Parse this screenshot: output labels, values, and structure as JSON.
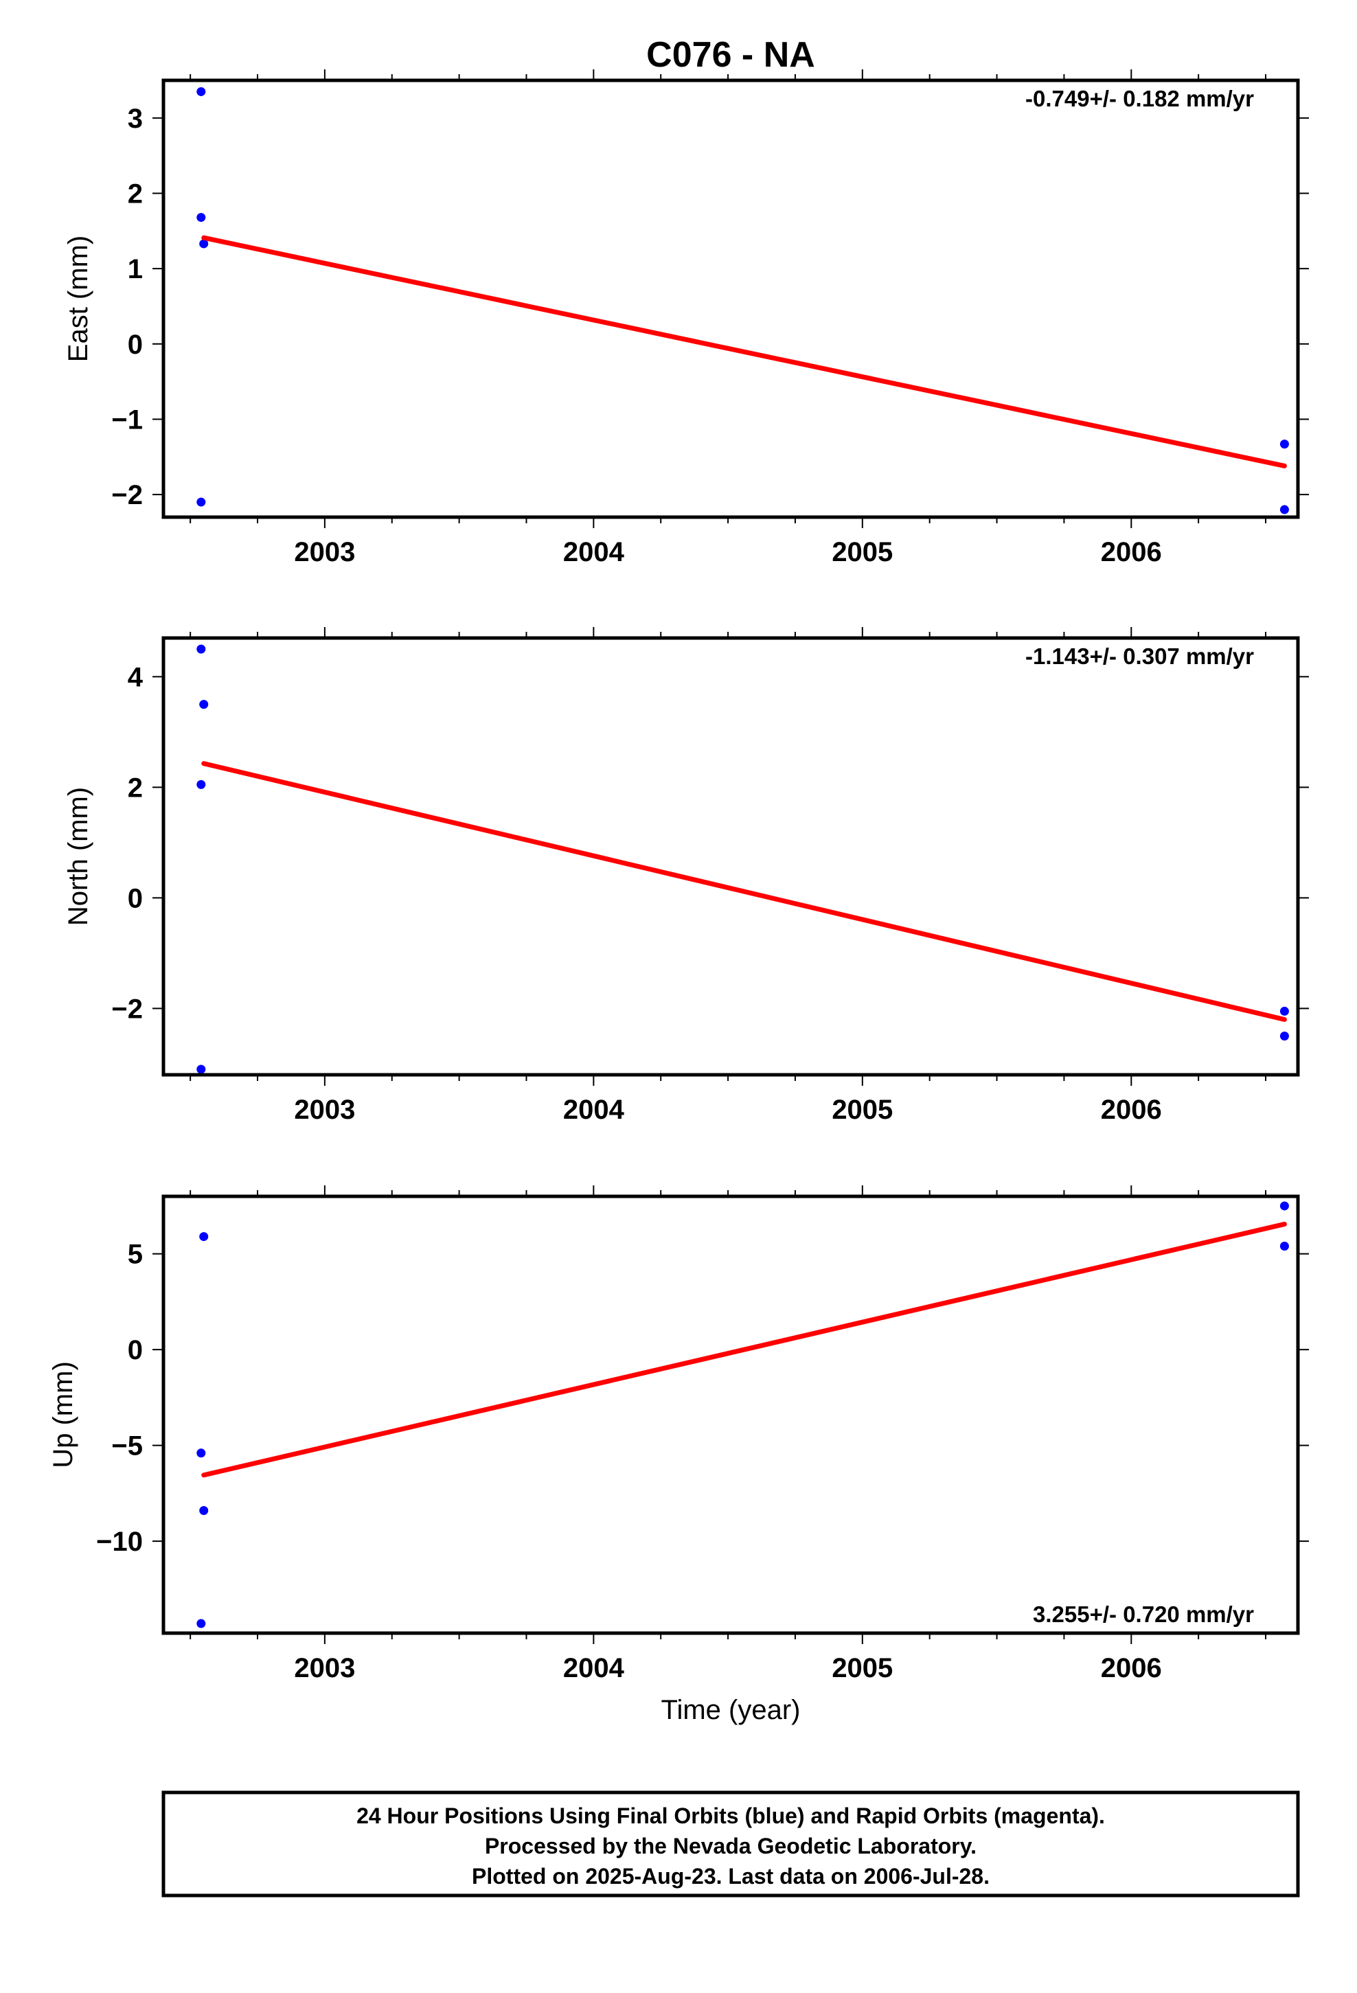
{
  "chart_data": [
    {
      "type": "scatter",
      "title": "C076 - NA",
      "xlabel": "",
      "ylabel": "East (mm)",
      "xlim": [
        2002.4,
        2006.62
      ],
      "ylim": [
        -2.3,
        3.5
      ],
      "xticks": [
        2003,
        2004,
        2005,
        2006
      ],
      "yticks": [
        3,
        2,
        1,
        0,
        -1,
        -2
      ],
      "ytick_labels": [
        "3",
        "2",
        "1",
        "0",
        "−1",
        "−2"
      ],
      "rate_text": "-0.749+/- 0.182 mm/yr",
      "rate_position": "top-right",
      "series": [
        {
          "kind": "points",
          "color": "#0000ff",
          "x": [
            2002.54,
            2002.54,
            2002.55,
            2002.54,
            2006.57,
            2006.57
          ],
          "y": [
            3.35,
            1.68,
            1.33,
            -2.1,
            -1.33,
            -2.2
          ]
        },
        {
          "kind": "line",
          "color": "#ff0000",
          "x": [
            2002.55,
            2006.57
          ],
          "y": [
            1.41,
            -1.62
          ]
        }
      ]
    },
    {
      "type": "scatter",
      "title": "",
      "xlabel": "",
      "ylabel": "North (mm)",
      "xlim": [
        2002.4,
        2006.62
      ],
      "ylim": [
        -3.2,
        4.7
      ],
      "xticks": [
        2003,
        2004,
        2005,
        2006
      ],
      "yticks": [
        4,
        2,
        0,
        -2
      ],
      "ytick_labels": [
        "4",
        "2",
        "0",
        "−2"
      ],
      "rate_text": "-1.143+/- 0.307 mm/yr",
      "rate_position": "top-right",
      "series": [
        {
          "kind": "points",
          "color": "#0000ff",
          "x": [
            2002.54,
            2002.55,
            2002.54,
            2002.54,
            2006.57,
            2006.57
          ],
          "y": [
            4.5,
            3.5,
            2.05,
            -3.1,
            -2.05,
            -2.5
          ]
        },
        {
          "kind": "line",
          "color": "#ff0000",
          "x": [
            2002.55,
            2006.57
          ],
          "y": [
            2.43,
            -2.2
          ]
        }
      ]
    },
    {
      "type": "scatter",
      "title": "",
      "xlabel": "Time (year)",
      "ylabel": "Up (mm)",
      "xlim": [
        2002.4,
        2006.62
      ],
      "ylim": [
        -14.8,
        8.0
      ],
      "xticks": [
        2003,
        2004,
        2005,
        2006
      ],
      "yticks": [
        5,
        0,
        -5,
        -10
      ],
      "ytick_labels": [
        "5",
        "0",
        "−5",
        "−10"
      ],
      "rate_text": "3.255+/- 0.720 mm/yr",
      "rate_position": "bottom-right",
      "series": [
        {
          "kind": "points",
          "color": "#0000ff",
          "x": [
            2002.55,
            2002.54,
            2002.55,
            2002.54,
            2006.57,
            2006.57
          ],
          "y": [
            5.9,
            -5.4,
            -8.4,
            -14.3,
            7.5,
            5.4
          ]
        },
        {
          "kind": "line",
          "color": "#ff0000",
          "x": [
            2002.55,
            2006.57
          ],
          "y": [
            -6.55,
            6.55
          ]
        }
      ]
    }
  ],
  "footer": {
    "line1": "24 Hour Positions Using Final Orbits (blue) and Rapid Orbits (magenta).",
    "line2": "Processed by the Nevada Geodetic Laboratory.",
    "line3": "Plotted on 2025-Aug-23. Last data on 2006-Jul-28."
  }
}
